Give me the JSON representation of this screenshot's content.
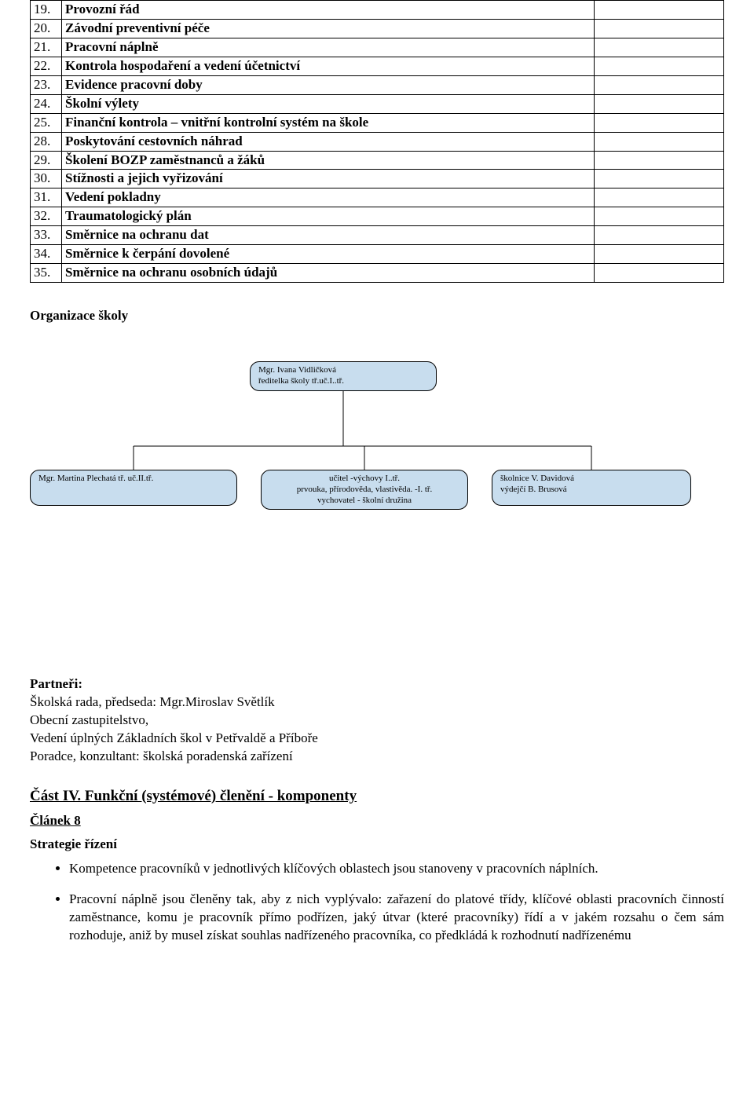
{
  "table": {
    "rows": [
      {
        "num": "19.",
        "text": "Provozní řád"
      },
      {
        "num": "20.",
        "text": "Závodní preventivní péče"
      },
      {
        "num": "21.",
        "text": "Pracovní náplně"
      },
      {
        "num": "22.",
        "text": "Kontrola hospodaření a vedení účetnictví"
      },
      {
        "num": "23.",
        "text": "Evidence pracovní doby"
      },
      {
        "num": "24.",
        "text": "Školní výlety"
      },
      {
        "num": "25.",
        "text": "Finanční kontrola – vnitřní kontrolní systém na škole"
      },
      {
        "num": "28.",
        "text": "Poskytování cestovních náhrad"
      },
      {
        "num": "29.",
        "text": "Školení BOZP zaměstnanců a žáků"
      },
      {
        "num": "30.",
        "text": "Stížnosti a jejich vyřizování"
      },
      {
        "num": "31.",
        "text": "Vedení pokladny"
      },
      {
        "num": "32.",
        "text": "Traumatologický plán"
      },
      {
        "num": "33.",
        "text": "Směrnice na ochranu dat"
      },
      {
        "num": "34.",
        "text": "Směrnice k čerpání dovolené"
      },
      {
        "num": "35.",
        "text": "Směrnice na ochranu osobních údajů"
      }
    ]
  },
  "org": {
    "heading": "Organizace školy",
    "top": "Mgr. Ivana Vidličková\nředitelka školy tř.uč.I..tř.",
    "b1": "Mgr. Martina Plechatá tř. uč.II.tř.",
    "b2": "učitel -výchovy I..tř.\nprvouka, přírodověda, vlastivěda. -I. tř.\nvychovatel - školní družina",
    "b3": "školnice V. Davidová\nvýdejčí B. Brusová",
    "node_bg": "#c8ddee",
    "node_border": "#000000",
    "line_color": "#000000",
    "node_fontsize": 11
  },
  "partners": {
    "heading": "Partneři:",
    "lines": [
      "Školská rada, předseda: Mgr.Miroslav Světlík",
      "Obecní zastupitelstvo,",
      "Vedení úplných  Základních škol v Petřvaldě a Příboře",
      "Poradce, konzultant: školská poradenská zařízení"
    ]
  },
  "part4": {
    "title": "Část IV. Funkční (systémové) členění - komponenty",
    "article": "Článek 8",
    "strategy": "Strategie řízení",
    "bullets": [
      "Kompetence pracovníků v jednotlivých klíčových oblastech jsou stanoveny v pracovních náplních.",
      "Pracovní náplně jsou členěny tak, aby z nich vyplývalo: zařazení do platové třídy, klíčové oblasti pracovních činností zaměstnance, komu je pracovník přímo podřízen, jaký útvar (které pracovníky) řídí a v jakém rozsahu o čem sám rozhoduje, aniž by musel získat souhlas nadřízeného pracovníka, co předkládá k rozhodnutí nadřízenému"
    ]
  }
}
